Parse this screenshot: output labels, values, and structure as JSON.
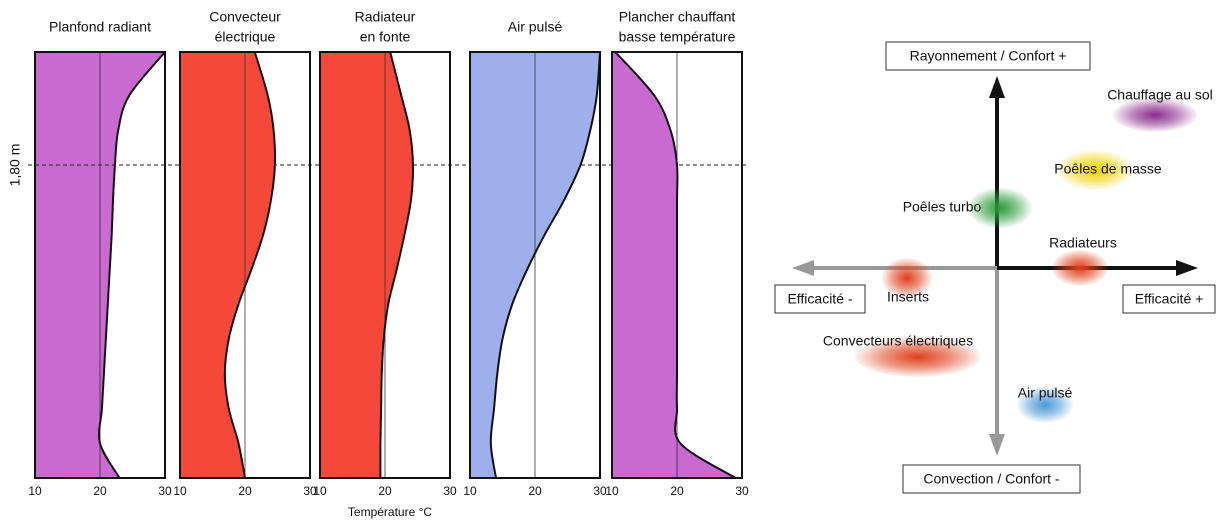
{
  "chart_data": [
    {
      "type": "area",
      "title": [
        "Planfond radiant"
      ],
      "color": "#c86ad0",
      "y": [
        0,
        0.2,
        0.4,
        0.6,
        0.8,
        1.0,
        1.2,
        1.4,
        1.6,
        1.8,
        2.0,
        2.2,
        2.45
      ],
      "values": [
        23,
        20,
        20.3,
        20.6,
        20.9,
        21.2,
        21.5,
        21.8,
        22.0,
        22.3,
        22.8,
        24.5,
        30
      ],
      "xlim": [
        10,
        30
      ],
      "xticks": [
        10,
        20,
        30
      ],
      "ylim": [
        0,
        2.45
      ],
      "yticks": [
        {
          "value": 1.8,
          "label": "1,80 m"
        }
      ]
    },
    {
      "type": "area",
      "title": [
        "Convecteur",
        "électrique"
      ],
      "color": "#f4493a",
      "y": [
        0,
        0.2,
        0.4,
        0.6,
        0.8,
        1.0,
        1.2,
        1.4,
        1.6,
        1.8,
        2.0,
        2.2,
        2.45
      ],
      "values": [
        20,
        19,
        17.5,
        16.9,
        17.5,
        19,
        21,
        22.8,
        24,
        24.6,
        24.4,
        23.5,
        21.5
      ],
      "xlim": [
        10,
        30
      ],
      "xticks": [
        10,
        20,
        30
      ],
      "ylim": [
        0,
        2.45
      ]
    },
    {
      "type": "area",
      "title": [
        "Radiateur",
        "en fonte"
      ],
      "color": "#f4493a",
      "y": [
        0,
        0.2,
        0.4,
        0.6,
        0.8,
        1.0,
        1.2,
        1.4,
        1.6,
        1.8,
        2.0,
        2.2,
        2.45
      ],
      "values": [
        19.3,
        19.3,
        19.4,
        19.5,
        19.8,
        20.5,
        21.8,
        23,
        24,
        24.3,
        23.8,
        22.5,
        20.8
      ],
      "xlim": [
        10,
        30
      ],
      "xticks": [
        10,
        20,
        30
      ],
      "ylim": [
        0,
        2.45
      ],
      "xlabel": "Température °C"
    },
    {
      "type": "area",
      "title": [
        "Air pulsé"
      ],
      "color": "#9db0ec",
      "y": [
        0,
        0.2,
        0.4,
        0.6,
        0.8,
        1.0,
        1.2,
        1.4,
        1.6,
        1.8,
        2.0,
        2.2,
        2.45
      ],
      "values": [
        14,
        13.2,
        13.7,
        14.2,
        15,
        16.5,
        18.8,
        21.5,
        24.5,
        27,
        28.5,
        29.5,
        30
      ],
      "xlim": [
        10,
        30
      ],
      "xticks": [
        10,
        20,
        30
      ],
      "ylim": [
        0,
        2.45
      ]
    },
    {
      "type": "area",
      "title": [
        "Plancher chauffant",
        "basse température"
      ],
      "color": "#c86ad0",
      "y": [
        0,
        0.2,
        0.4,
        0.6,
        0.8,
        1.0,
        1.2,
        1.4,
        1.6,
        1.8,
        2.0,
        2.2,
        2.45
      ],
      "values": [
        29,
        20.5,
        20,
        20,
        20,
        20,
        20,
        20,
        20,
        20,
        19,
        16.5,
        10.5
      ],
      "xlim": [
        10,
        30
      ],
      "xticks": [
        10,
        20,
        30
      ],
      "ylim": [
        0,
        2.45
      ]
    }
  ],
  "diagram": {
    "axes": {
      "top": "Rayonnement / Confort +",
      "bottom": "Convection / Confort -",
      "left": "Efficacité -",
      "right": "Efficacité +"
    },
    "items": [
      {
        "label": "Chauffage au sol",
        "color": "#8a2a8c"
      },
      {
        "label": "Poêles de masse",
        "color": "#f0d000"
      },
      {
        "label": "Poêles turbo",
        "color": "#2a9a3a"
      },
      {
        "label": "Radiateurs",
        "color": "#e0401a"
      },
      {
        "label": "Inserts",
        "color": "#e0401a"
      },
      {
        "label": "Convecteurs électriques",
        "color": "#e0401a"
      },
      {
        "label": "Air pulsé",
        "color": "#4a98d8"
      }
    ]
  }
}
